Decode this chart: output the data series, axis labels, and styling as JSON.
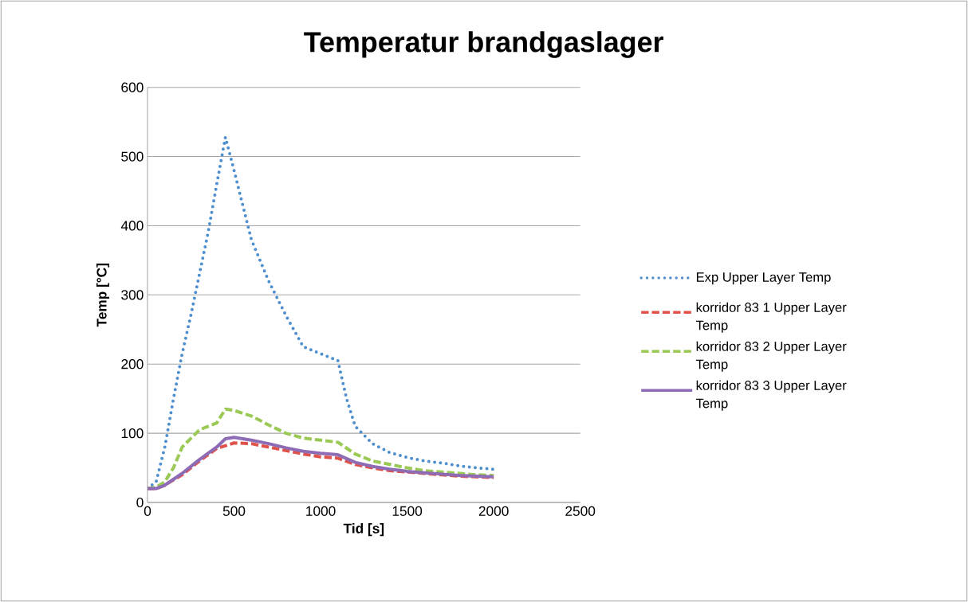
{
  "chart_data": {
    "type": "line",
    "title": "Temperatur brandgaslager",
    "xlabel": "Tid [s]",
    "ylabel": "Temp [°C]",
    "xlim": [
      0,
      2500
    ],
    "xticks": [
      0,
      500,
      1000,
      1500,
      2000,
      2500
    ],
    "ylim": [
      0,
      600
    ],
    "yticks": [
      0,
      100,
      200,
      300,
      400,
      500,
      600
    ],
    "grid": "y",
    "legend": "right",
    "marker": "none",
    "series": [
      {
        "name": "Exp Upper Layer Temp",
        "color": "#4f8fcf",
        "line_style": "dotted",
        "x": [
          0,
          50,
          100,
          150,
          200,
          250,
          300,
          350,
          400,
          450,
          500,
          600,
          700,
          800,
          900,
          1000,
          1100,
          1150,
          1200,
          1300,
          1400,
          1500,
          1600,
          1700,
          1800,
          1900,
          2000
        ],
        "values": [
          20,
          30,
          80,
          150,
          215,
          270,
          330,
          390,
          460,
          528,
          480,
          380,
          320,
          270,
          225,
          215,
          205,
          150,
          110,
          85,
          72,
          65,
          60,
          57,
          53,
          50,
          48
        ]
      },
      {
        "name": "korridor 83 1 Upper Layer Temp",
        "color": "#e0524c",
        "line_style": "dashed",
        "x": [
          0,
          50,
          100,
          200,
          300,
          400,
          500,
          600,
          700,
          800,
          900,
          1000,
          1100,
          1200,
          1300,
          1400,
          1500,
          1600,
          1700,
          1800,
          1900,
          2000
        ],
        "values": [
          20,
          20,
          25,
          40,
          60,
          78,
          86,
          85,
          80,
          75,
          70,
          66,
          64,
          55,
          50,
          46,
          44,
          42,
          40,
          38,
          37,
          36
        ]
      },
      {
        "name": "korridor 83 2 Upper Layer Temp",
        "color": "#9bc955",
        "line_style": "dashed",
        "x": [
          0,
          50,
          100,
          150,
          200,
          300,
          400,
          450,
          500,
          600,
          700,
          800,
          900,
          1000,
          1100,
          1200,
          1300,
          1400,
          1500,
          1600,
          1700,
          1800,
          1900,
          2000
        ],
        "values": [
          20,
          22,
          30,
          50,
          80,
          105,
          115,
          135,
          133,
          125,
          112,
          100,
          93,
          90,
          87,
          70,
          60,
          55,
          50,
          46,
          44,
          42,
          40,
          39
        ]
      },
      {
        "name": "korridor 83 3 Upper Layer Temp",
        "color": "#8e6bb5",
        "line_style": "solid",
        "x": [
          0,
          50,
          100,
          200,
          300,
          400,
          450,
          500,
          600,
          700,
          800,
          900,
          1000,
          1100,
          1200,
          1300,
          1400,
          1500,
          1600,
          1700,
          1800,
          1900,
          2000
        ],
        "values": [
          20,
          20,
          25,
          42,
          62,
          80,
          92,
          94,
          90,
          85,
          79,
          74,
          71,
          69,
          58,
          52,
          48,
          45,
          43,
          41,
          39,
          38,
          37
        ]
      }
    ]
  }
}
